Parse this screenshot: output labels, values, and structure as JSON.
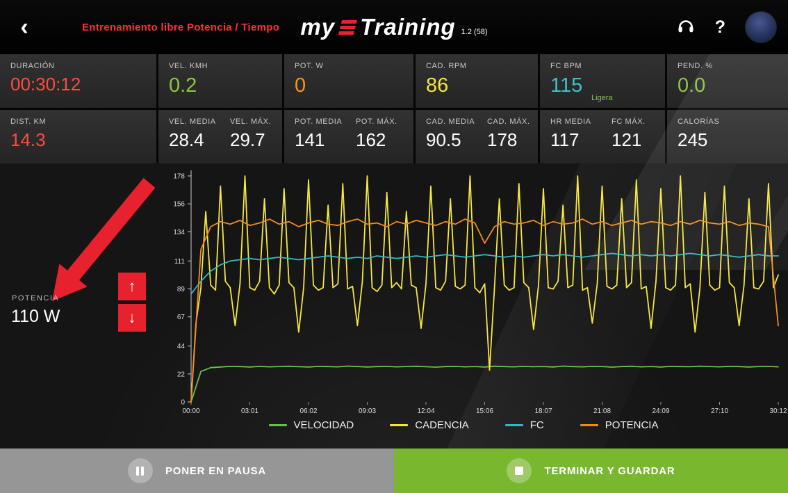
{
  "header": {
    "back_icon": "‹",
    "title": "Entrenamiento libre Potencia / Tiempo",
    "title_color": "#ff3030",
    "logo_my": "my",
    "logo_training": "Training",
    "version": "1.2 (58)",
    "help_icon": "?"
  },
  "stats_row1": [
    {
      "label": "DURACIÓN",
      "value": "00:30:12",
      "color": "#ff4b3e"
    },
    {
      "label": "VEL. KMH",
      "value": "0.2",
      "color": "#8dc63f"
    },
    {
      "label": "POT. W",
      "value": "0",
      "color": "#f7941e"
    },
    {
      "label": "CAD. RPM",
      "value": "86",
      "color": "#f5e642"
    },
    {
      "label": "FC BPM",
      "value": "115",
      "color": "#3fc1c9",
      "sub": "Ligera",
      "sub_color": "#8dc63f"
    },
    {
      "label": "PEND. %",
      "value": "0.0",
      "color": "#8dc63f"
    }
  ],
  "stats_row2": [
    {
      "label": "DIST. KM",
      "value": "14.3",
      "color": "#ff4b3e"
    },
    {
      "pairs": [
        {
          "label": "VEL. MEDIA",
          "value": "28.4"
        },
        {
          "label": "VEL. MÁX.",
          "value": "29.7"
        }
      ]
    },
    {
      "pairs": [
        {
          "label": "POT. MEDIA",
          "value": "141"
        },
        {
          "label": "POT. MÁX.",
          "value": "162"
        }
      ]
    },
    {
      "pairs": [
        {
          "label": "CAD. MEDIA",
          "value": "90.5"
        },
        {
          "label": "CAD. MÁX.",
          "value": "178"
        }
      ]
    },
    {
      "pairs": [
        {
          "label": "HR MEDIA",
          "value": "117"
        },
        {
          "label": "FC MÁX.",
          "value": "121"
        }
      ]
    },
    {
      "label": "CALORÍAS",
      "value": "245",
      "color": "#ffffff"
    }
  ],
  "power_control": {
    "label": "POTENCIA",
    "value": "110 W",
    "up_icon": "↑",
    "down_icon": "↓",
    "button_color": "#e8212e",
    "annotation_color": "#e8212e"
  },
  "chart_data": {
    "type": "line",
    "title": "",
    "xlabel": "",
    "ylabel": "",
    "grid": false,
    "legend_position": "bottom",
    "ylim": [
      0,
      178
    ],
    "yticks": [
      178,
      156,
      134,
      111,
      89,
      67,
      44,
      22,
      0
    ],
    "xticks": [
      "00:00",
      "03:01",
      "06:02",
      "09:03",
      "12:04",
      "15:06",
      "18:07",
      "21:08",
      "24:09",
      "27:10",
      "30:12"
    ],
    "series": [
      {
        "name": "VELOCIDAD",
        "color": "#6abf4b",
        "values": [
          0,
          24,
          27,
          27.5,
          28,
          27.8,
          27.5,
          28,
          27.6,
          27.9,
          28.1,
          27.7,
          27.5,
          28,
          27.8,
          27.6,
          28.2,
          27.9,
          27.5,
          27.8,
          28,
          27.6,
          27.9,
          28.1,
          27.7,
          27.4,
          27.8,
          28,
          27.6,
          27.9,
          27.5,
          28.1,
          27.8,
          27.6,
          28,
          27.7,
          27.9,
          27.5,
          28.2,
          27.8,
          27.6,
          28,
          27.9,
          27.4,
          27.8,
          28.1,
          27.6,
          27.9,
          27.5,
          28,
          27.8,
          27.7,
          28.1,
          27.9,
          27.6,
          28,
          27.8,
          27.5,
          27.9,
          28,
          27.6
        ]
      },
      {
        "name": "CADENCIA",
        "color": "#f5e642",
        "values": [
          0,
          62,
          90,
          150,
          92,
          88,
          170,
          95,
          90,
          60,
          93,
          178,
          90,
          88,
          95,
          160,
          90,
          85,
          92,
          168,
          94,
          90,
          55,
          90,
          175,
          92,
          88,
          90,
          155,
          90,
          93,
          172,
          89,
          91,
          60,
          95,
          178,
          90,
          87,
          92,
          165,
          90,
          94,
          89,
          150,
          92,
          90,
          58,
          93,
          170,
          90,
          88,
          95,
          160,
          91,
          89,
          92,
          178,
          90,
          86,
          93,
          25,
          90,
          160,
          92,
          88,
          90,
          172,
          94,
          90,
          57,
          92,
          168,
          90,
          89,
          95,
          155,
          90,
          92,
          178,
          88,
          90,
          62,
          93,
          170,
          91,
          89,
          92,
          160,
          90,
          94,
          175,
          89,
          91,
          58,
          95,
          168,
          90,
          88,
          92,
          178,
          90,
          93,
          55,
          90,
          165,
          92,
          88,
          90,
          170,
          94,
          90,
          60,
          92,
          160,
          90,
          89,
          95,
          172,
          90,
          100
        ]
      },
      {
        "name": "FC",
        "color": "#35b8c2",
        "values": [
          85,
          95,
          103,
          108,
          111,
          112,
          113,
          112,
          113,
          114,
          113,
          112,
          113,
          114,
          115,
          114,
          113,
          114,
          113,
          115,
          114,
          113,
          114,
          115,
          114,
          115,
          116,
          115,
          114,
          115,
          116,
          115,
          114,
          115,
          114,
          115,
          116,
          115,
          116,
          115,
          114,
          115,
          116,
          117,
          116,
          115,
          116,
          115,
          116,
          115,
          116,
          117,
          116,
          115,
          116,
          115,
          114,
          115,
          116,
          115,
          115
        ]
      },
      {
        "name": "POTENCIA",
        "color": "#f08c1e",
        "values": [
          0,
          120,
          138,
          142,
          140,
          143,
          139,
          141,
          144,
          140,
          142,
          138,
          141,
          143,
          140,
          139,
          142,
          144,
          140,
          141,
          138,
          142,
          140,
          143,
          141,
          139,
          142,
          140,
          144,
          141,
          125,
          138,
          142,
          140,
          141,
          143,
          139,
          142,
          140,
          141,
          144,
          140,
          142,
          139,
          141,
          143,
          140,
          142,
          141,
          139,
          142,
          140,
          143,
          141,
          140,
          142,
          139,
          141,
          140,
          138,
          60
        ]
      }
    ]
  },
  "footer": {
    "pause_label": "PONER EN PAUSA",
    "finish_label": "TERMINAR Y GUARDAR",
    "pause_bg": "#969696",
    "finish_bg": "#79b72f"
  }
}
